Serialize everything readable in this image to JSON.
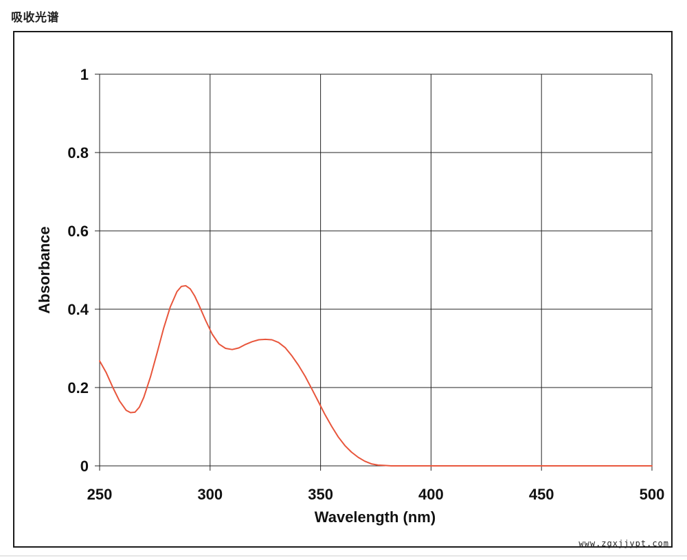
{
  "page": {
    "heading": "吸收光谱",
    "watermark": "www.zgxjjypt.com"
  },
  "colors": {
    "curve": "#e8553b",
    "grid": "#222222",
    "frame": "#1a1a1a"
  },
  "chart_data": {
    "type": "line",
    "title": "",
    "xlabel": "Wavelength (nm)",
    "ylabel": "Absorbance",
    "xlim": [
      250,
      500
    ],
    "ylim": [
      0,
      1
    ],
    "xticks": [
      250,
      300,
      350,
      400,
      450,
      500
    ],
    "yticks": [
      0,
      0.2,
      0.4,
      0.6,
      0.8,
      1
    ],
    "ytick_labels": [
      "0",
      "0.2",
      "0.4",
      "0.6",
      "0.8",
      "1"
    ],
    "xtick_labels": [
      "250",
      "300",
      "350",
      "400",
      "450",
      "500"
    ],
    "grid": true,
    "legend": "none",
    "series": [
      {
        "x": [
          250,
          253,
          256,
          259,
          262,
          264,
          266,
          268,
          270,
          273,
          276,
          279,
          282,
          285,
          287,
          289,
          291,
          293,
          295,
          298,
          301,
          304,
          307,
          310,
          313,
          316,
          319,
          322,
          325,
          328,
          331,
          334,
          337,
          340,
          343,
          346,
          349,
          352,
          355,
          358,
          361,
          364,
          367,
          370,
          373,
          376,
          379,
          382,
          385,
          390,
          400,
          420,
          450,
          480,
          500
        ],
        "y": [
          0.268,
          0.238,
          0.2,
          0.166,
          0.142,
          0.136,
          0.137,
          0.15,
          0.175,
          0.227,
          0.288,
          0.352,
          0.406,
          0.445,
          0.458,
          0.46,
          0.452,
          0.434,
          0.41,
          0.371,
          0.336,
          0.311,
          0.3,
          0.297,
          0.301,
          0.31,
          0.317,
          0.322,
          0.323,
          0.322,
          0.315,
          0.302,
          0.281,
          0.257,
          0.229,
          0.197,
          0.164,
          0.131,
          0.101,
          0.074,
          0.052,
          0.035,
          0.022,
          0.012,
          0.005,
          0.002,
          0.001,
          0,
          0,
          0,
          0,
          0,
          0,
          0,
          0
        ]
      }
    ]
  }
}
